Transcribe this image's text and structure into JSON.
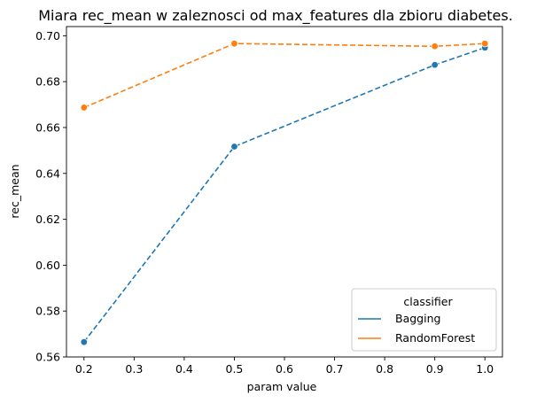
{
  "chart_data": {
    "type": "line",
    "title": "Miara rec_mean w zaleznosci od max_features dla zbioru diabetes.",
    "xlabel": "param value",
    "ylabel": "rec_mean",
    "x": [
      0.2,
      0.5,
      0.9,
      1.0
    ],
    "xlim": [
      0.165,
      1.035
    ],
    "ylim": [
      0.56,
      0.704
    ],
    "x_ticks": [
      0.2,
      0.3,
      0.4,
      0.5,
      0.6,
      0.7,
      0.8,
      0.9,
      1.0
    ],
    "x_tick_labels": [
      "0.2",
      "0.3",
      "0.4",
      "0.5",
      "0.6",
      "0.7",
      "0.8",
      "0.9",
      "1.0"
    ],
    "y_ticks": [
      0.56,
      0.58,
      0.6,
      0.62,
      0.64,
      0.66,
      0.68,
      0.7
    ],
    "y_tick_labels": [
      "0.56",
      "0.58",
      "0.60",
      "0.62",
      "0.64",
      "0.66",
      "0.68",
      "0.70"
    ],
    "grid": false,
    "line_style": "dashed",
    "markers": "circle",
    "series": [
      {
        "name": "Bagging",
        "color": "#1f77b4",
        "values": [
          0.5665,
          0.6517,
          0.6873,
          0.6948
        ]
      },
      {
        "name": "RandomForest",
        "color": "#ff7f0e",
        "values": [
          0.6687,
          0.6966,
          0.6954,
          0.6966
        ]
      }
    ],
    "legend": {
      "title": "classifier",
      "placement": "lower-right"
    }
  }
}
